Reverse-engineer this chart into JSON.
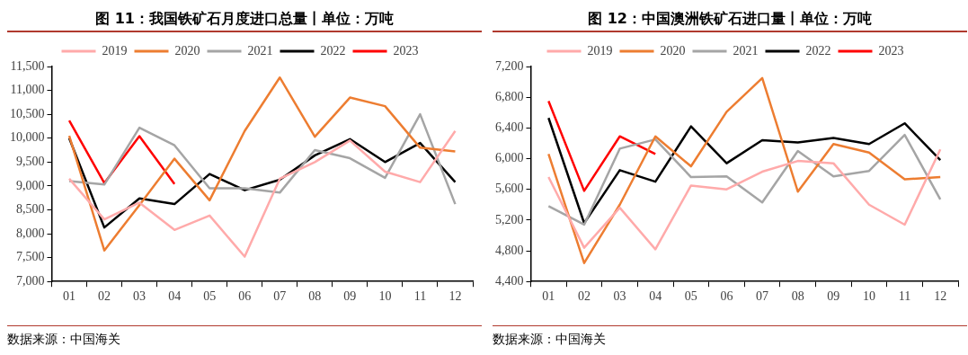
{
  "chart_data": [
    {
      "type": "line",
      "title": "图 11：我国铁矿石月度进口总量丨单位：万吨",
      "categories": [
        "01",
        "02",
        "03",
        "04",
        "05",
        "06",
        "07",
        "08",
        "09",
        "10",
        "11",
        "12"
      ],
      "ylim": [
        7000,
        11500
      ],
      "yticks": [
        {
          "value": 7000,
          "label": "7,000"
        },
        {
          "value": 7500,
          "label": "7,500"
        },
        {
          "value": 8000,
          "label": "8,000"
        },
        {
          "value": 8500,
          "label": "8,500"
        },
        {
          "value": 9000,
          "label": "9,000"
        },
        {
          "value": 9500,
          "label": "9,500"
        },
        {
          "value": 10000,
          "label": "10,000"
        },
        {
          "value": 10500,
          "label": "10,500"
        },
        {
          "value": 11000,
          "label": "11,000"
        },
        {
          "value": 11500,
          "label": "11,500"
        }
      ],
      "grid": false,
      "legend": "top",
      "marker": "none",
      "annotations": [
        "数据来源：中国海关"
      ],
      "series": [
        {
          "name": "2019",
          "color": "#ffaaaa",
          "values": [
            9150,
            8300,
            8650,
            8080,
            8380,
            7520,
            9150,
            9500,
            9950,
            9300,
            9080,
            10150
          ]
        },
        {
          "name": "2020",
          "color": "#ed7d31",
          "values": [
            10050,
            7650,
            8600,
            9570,
            8700,
            10150,
            11270,
            10030,
            10850,
            10670,
            9800,
            9720
          ]
        },
        {
          "name": "2021",
          "color": "#a5a5a5",
          "values": [
            9100,
            9030,
            10220,
            9850,
            8950,
            8950,
            8860,
            9750,
            9580,
            9170,
            10500,
            8620
          ]
        },
        {
          "name": "2022",
          "color": "#000000",
          "values": [
            10000,
            8130,
            8740,
            8620,
            9250,
            8910,
            9130,
            9640,
            9980,
            9500,
            9900,
            9080
          ]
        },
        {
          "name": "2023",
          "color": "#ff0000",
          "values": [
            10370,
            9060,
            10040,
            9040,
            null,
            null,
            null,
            null,
            null,
            null,
            null,
            null
          ]
        }
      ]
    },
    {
      "type": "line",
      "title": "图 12：中国澳洲铁矿石进口量丨单位：万吨",
      "categories": [
        "01",
        "02",
        "03",
        "04",
        "05",
        "06",
        "07",
        "08",
        "09",
        "10",
        "11",
        "12"
      ],
      "ylim": [
        4400,
        7200
      ],
      "yticks": [
        {
          "value": 4400,
          "label": "4,400"
        },
        {
          "value": 4800,
          "label": "4,800"
        },
        {
          "value": 5200,
          "label": "5,200"
        },
        {
          "value": 5600,
          "label": "5,600"
        },
        {
          "value": 6000,
          "label": "6,000"
        },
        {
          "value": 6400,
          "label": "6,400"
        },
        {
          "value": 6800,
          "label": "6,800"
        },
        {
          "value": 7200,
          "label": "7,200"
        }
      ],
      "grid": false,
      "legend": "top",
      "marker": "none",
      "annotations": [
        "数据来源：中国海关"
      ],
      "series": [
        {
          "name": "2019",
          "color": "#ffaaaa",
          "values": [
            5760,
            4840,
            5360,
            4820,
            5650,
            5600,
            5830,
            5970,
            5940,
            5400,
            5140,
            6120
          ]
        },
        {
          "name": "2020",
          "color": "#ed7d31",
          "values": [
            6060,
            4640,
            5400,
            6290,
            5900,
            6610,
            7050,
            5570,
            6190,
            6080,
            5730,
            5760
          ]
        },
        {
          "name": "2021",
          "color": "#a5a5a5",
          "values": [
            5380,
            5140,
            6130,
            6250,
            5760,
            5770,
            5430,
            6100,
            5770,
            5840,
            6310,
            5470
          ]
        },
        {
          "name": "2022",
          "color": "#000000",
          "values": [
            6530,
            5160,
            5850,
            5700,
            6420,
            5940,
            6240,
            6210,
            6270,
            6190,
            6460,
            5980
          ]
        },
        {
          "name": "2023",
          "color": "#ff0000",
          "values": [
            6750,
            5580,
            6290,
            6060,
            null,
            null,
            null,
            null,
            null,
            null,
            null,
            null
          ]
        }
      ]
    }
  ]
}
